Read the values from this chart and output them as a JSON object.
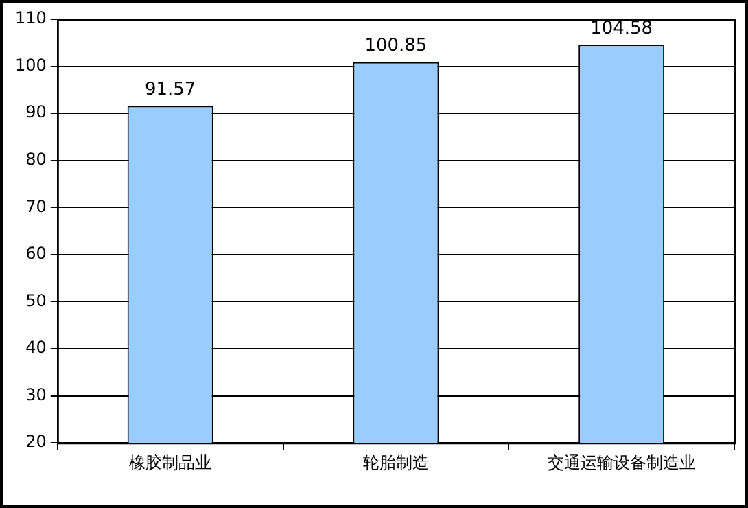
{
  "chart_data": {
    "type": "bar",
    "categories": [
      "橡胶制品业",
      "轮胎制造",
      "交通运输设备制造业"
    ],
    "values": [
      91.57,
      100.85,
      104.58
    ],
    "color": "#99ccff",
    "ylim": [
      20,
      110
    ],
    "yticks": [
      20,
      30,
      40,
      50,
      60,
      70,
      80,
      90,
      100,
      110
    ],
    "grid": "y",
    "data_labels": true
  }
}
